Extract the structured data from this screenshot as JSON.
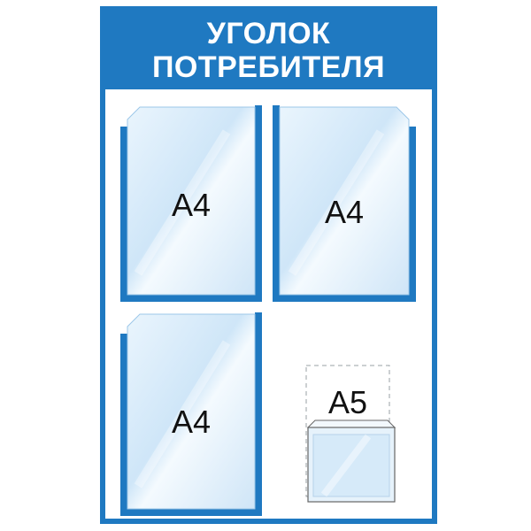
{
  "stand": {
    "title_line1": "УГОЛОК",
    "title_line2": "ПОТРЕБИТЕЛЯ",
    "accent_color": "#1f79c1",
    "pocket_tint": "#d9ecfa"
  },
  "pockets": [
    {
      "label": "A4"
    },
    {
      "label": "A4"
    },
    {
      "label": "A4"
    }
  ],
  "a5_pocket": {
    "label": "A5"
  }
}
